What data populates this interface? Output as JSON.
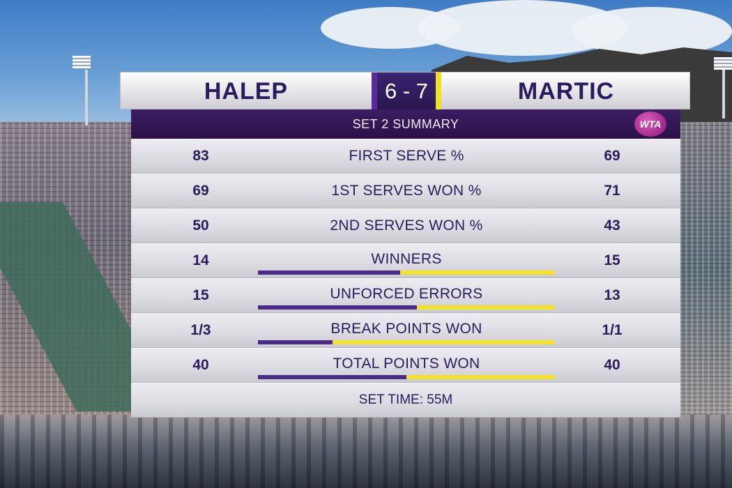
{
  "scoreboard": {
    "player1": "HALEP",
    "player2": "MARTIC",
    "score": "6 - 7",
    "title": "SET 2 SUMMARY",
    "logo": "WTA",
    "colors": {
      "player1": "#4a2a86",
      "player2": "#f2e22c",
      "title_bar": "#2b1049"
    },
    "stats": [
      {
        "label": "FIRST SERVE %",
        "left": "83",
        "right": "69",
        "bar": null
      },
      {
        "label": "1ST SERVES WON %",
        "left": "69",
        "right": "71",
        "bar": null
      },
      {
        "label": "2ND SERVES WON %",
        "left": "50",
        "right": "43",
        "bar": null
      },
      {
        "label": "WINNERS",
        "left": "14",
        "right": "15",
        "bar": {
          "left_share": 0.48
        }
      },
      {
        "label": "UNFORCED ERRORS",
        "left": "15",
        "right": "13",
        "bar": {
          "left_share": 0.536
        }
      },
      {
        "label": "BREAK POINTS WON",
        "left": "1/3",
        "right": "1/1",
        "bar": {
          "left_share": 0.25
        }
      },
      {
        "label": "TOTAL POINTS WON",
        "left": "40",
        "right": "40",
        "bar": {
          "left_share": 0.5
        }
      }
    ],
    "set_time": "SET TIME: 55M"
  }
}
